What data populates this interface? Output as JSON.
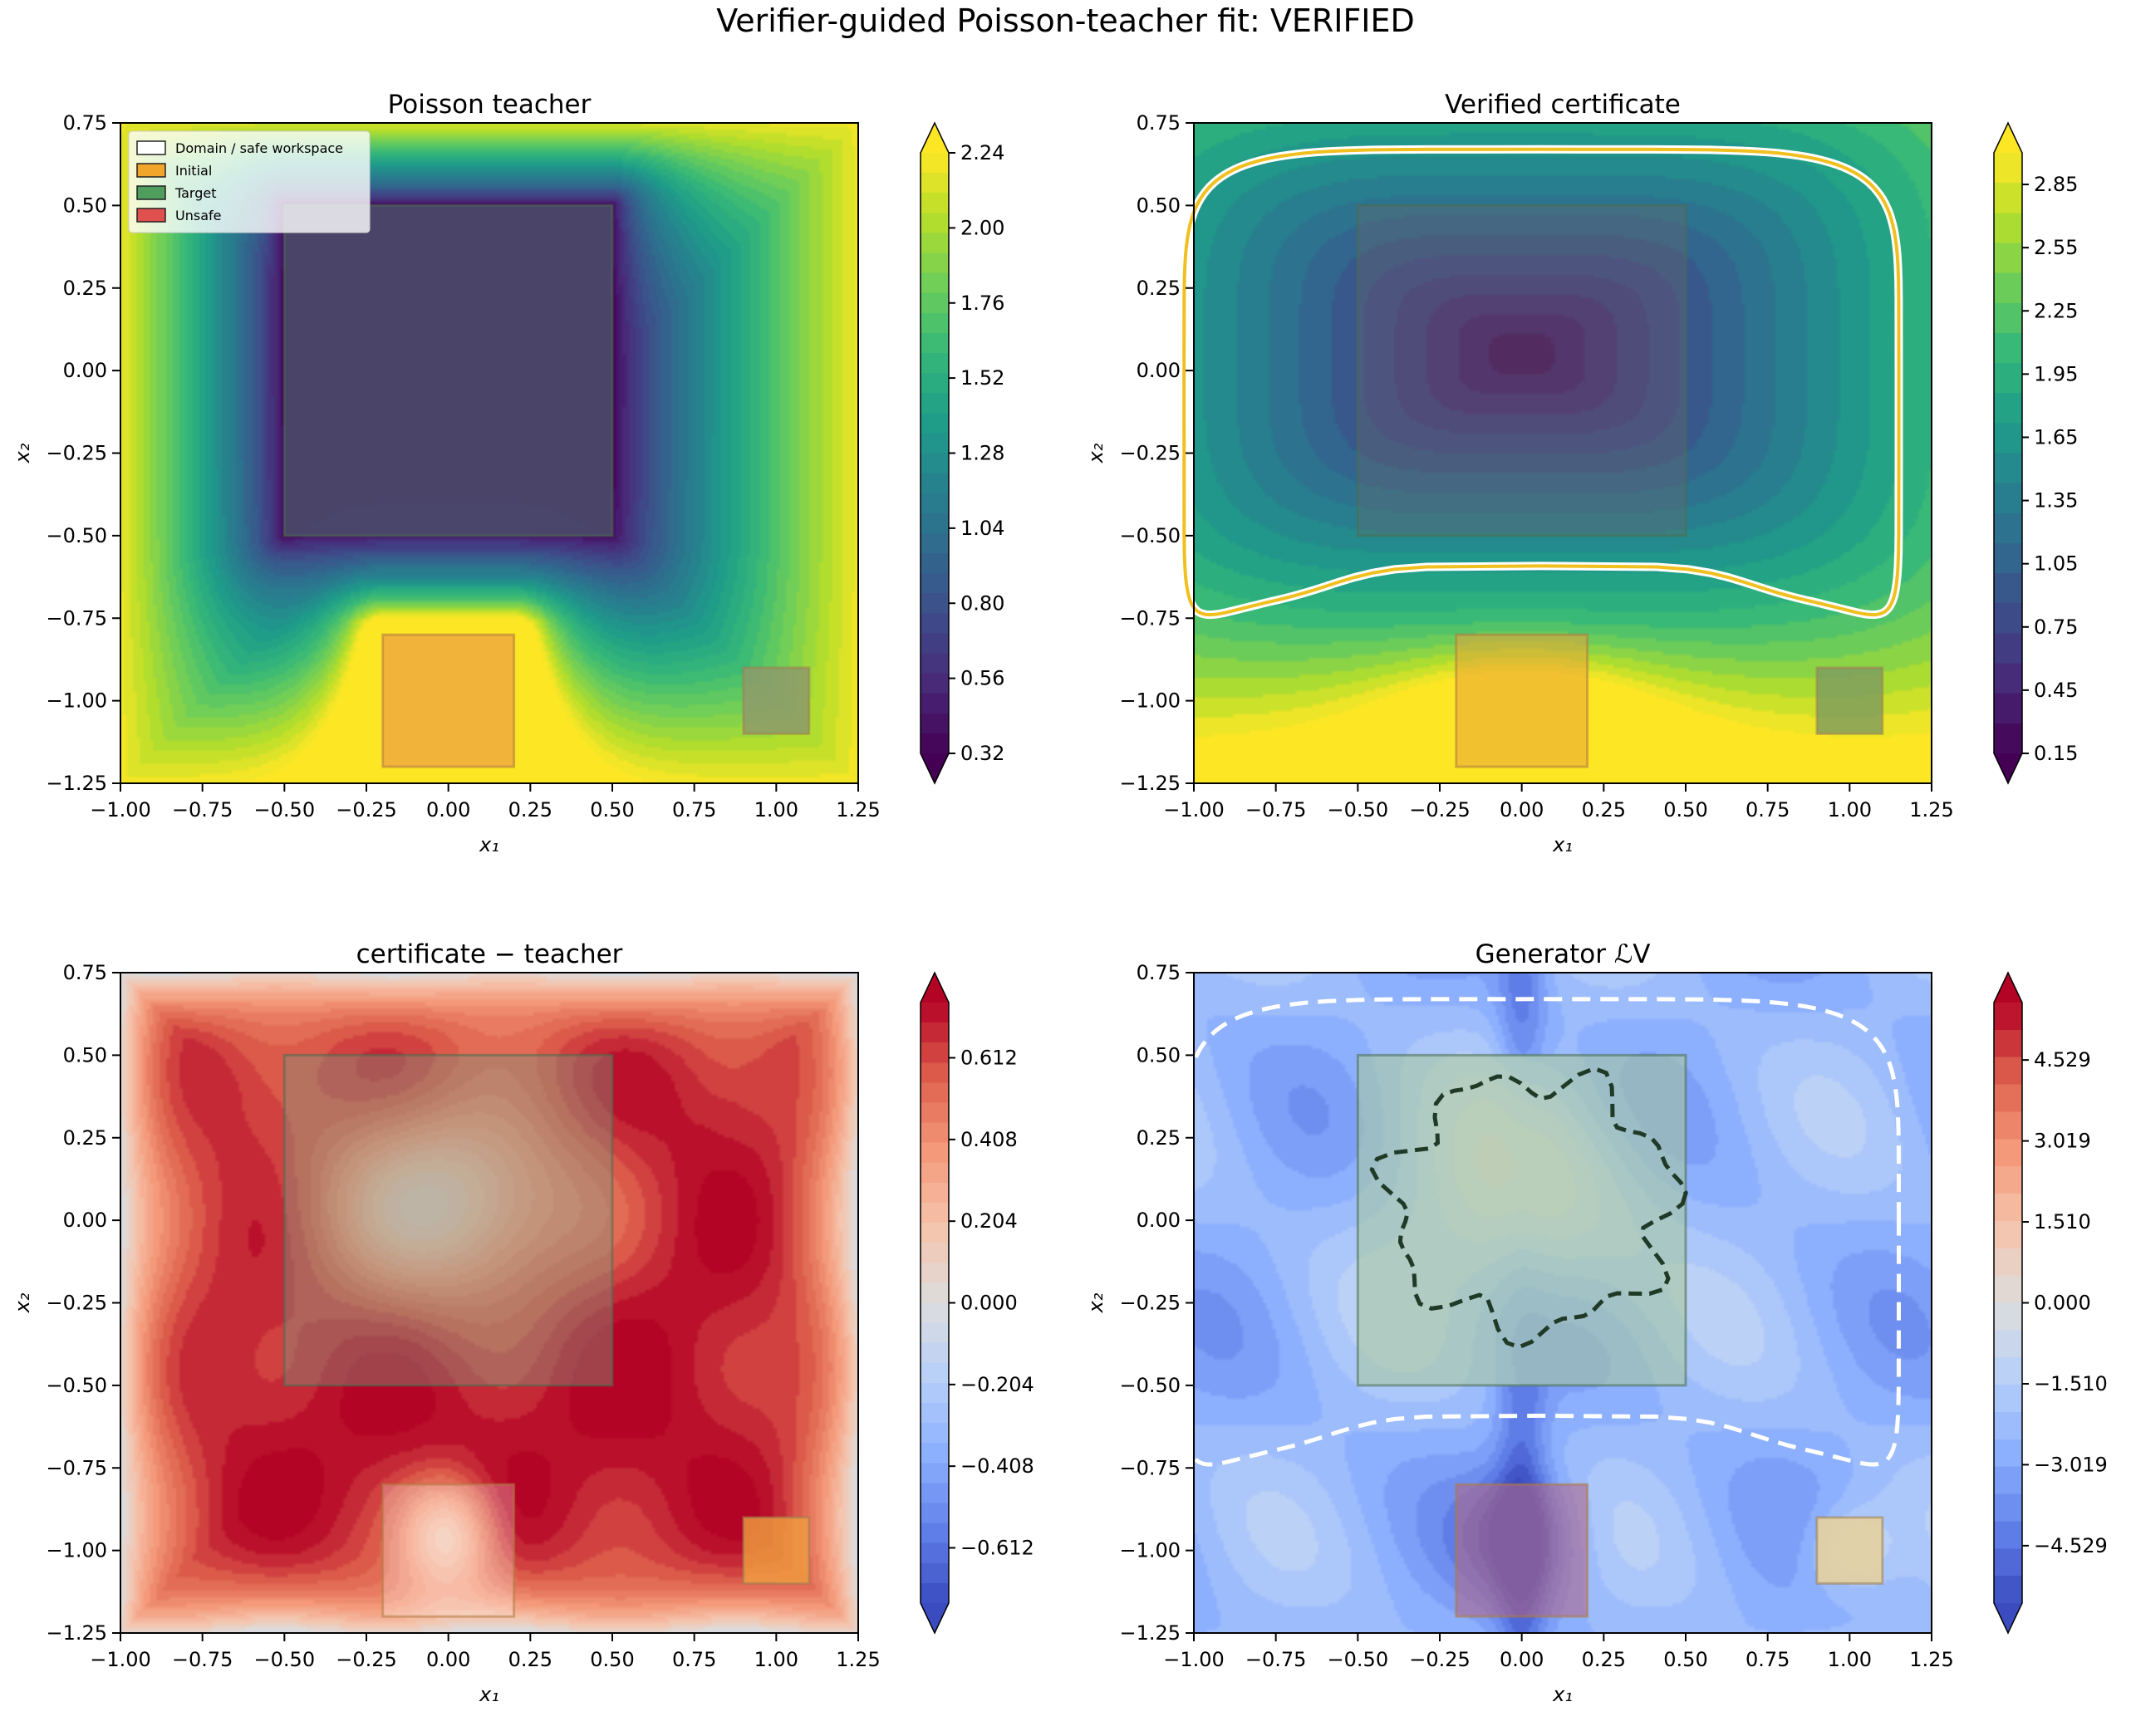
{
  "suptitle": "Verifier-guided Poisson-teacher fit: VERIFIED",
  "chart_data": [
    {
      "type": "heatmap",
      "title": "Poisson teacher",
      "xlabel": "x₁",
      "ylabel": "x₂",
      "xlim": [
        -1.0,
        1.25
      ],
      "ylim": [
        -1.25,
        0.75
      ],
      "xticks": [
        "−1.00",
        "−0.75",
        "−0.50",
        "−0.25",
        "0.00",
        "0.25",
        "0.50",
        "0.75",
        "1.00",
        "1.25"
      ],
      "yticks": [
        "0.75",
        "0.50",
        "0.25",
        "0.00",
        "−0.25",
        "−0.50",
        "−0.75",
        "−1.00",
        "−1.25"
      ],
      "colormap": "viridis",
      "colorbar_ticks": [
        "2.24",
        "2.00",
        "1.76",
        "1.52",
        "1.28",
        "1.04",
        "0.80",
        "0.56",
        "0.32"
      ],
      "colorbar_range": [
        0.32,
        2.24
      ],
      "legend": {
        "placement": "upper-left",
        "entries": [
          {
            "label": "Domain / safe workspace",
            "color": "#ffffff"
          },
          {
            "label": "Initial",
            "color": "#f2a52b"
          },
          {
            "label": "Target",
            "color": "#4f9e5e"
          },
          {
            "label": "Unsafe",
            "color": "#e0504f"
          }
        ]
      },
      "regions": {
        "target": [
          -0.5,
          0.5,
          -0.5,
          0.5
        ],
        "initial": [
          -0.2,
          0.2,
          -1.2,
          -0.8
        ],
        "unsafe": [
          0.9,
          1.1,
          -1.1,
          -0.9
        ]
      }
    },
    {
      "type": "heatmap",
      "title": "Verified certificate",
      "xlabel": "x₁",
      "ylabel": "x₂",
      "xlim": [
        -1.0,
        1.25
      ],
      "ylim": [
        -1.25,
        0.75
      ],
      "xticks": [
        "−1.00",
        "−0.75",
        "−0.50",
        "−0.25",
        "0.00",
        "0.25",
        "0.50",
        "0.75",
        "1.00",
        "1.25"
      ],
      "yticks": [
        "0.75",
        "0.50",
        "0.25",
        "0.00",
        "−0.25",
        "−0.50",
        "−0.75",
        "−1.00",
        "−1.25"
      ],
      "colormap": "viridis",
      "colorbar_ticks": [
        "2.85",
        "2.55",
        "2.25",
        "1.95",
        "1.65",
        "1.35",
        "1.05",
        "0.75",
        "0.45",
        "0.15"
      ],
      "colorbar_range": [
        0.15,
        3.0
      ],
      "level_curves": [
        "white",
        "gold"
      ]
    },
    {
      "type": "heatmap",
      "title": "certificate − teacher",
      "xlabel": "x₁",
      "ylabel": "x₂",
      "xlim": [
        -1.0,
        1.25
      ],
      "ylim": [
        -1.25,
        0.75
      ],
      "xticks": [
        "−1.00",
        "−0.75",
        "−0.50",
        "−0.25",
        "0.00",
        "0.25",
        "0.50",
        "0.75",
        "1.00",
        "1.25"
      ],
      "yticks": [
        "0.75",
        "0.50",
        "0.25",
        "0.00",
        "−0.25",
        "−0.50",
        "−0.75",
        "−1.00",
        "−1.25"
      ],
      "colormap": "coolwarm",
      "colorbar_ticks": [
        "0.612",
        "0.408",
        "0.204",
        "0.000",
        "−0.204",
        "−0.408",
        "−0.612"
      ],
      "colorbar_range": [
        -0.75,
        0.75
      ]
    },
    {
      "type": "heatmap",
      "title": "Generator ",
      "title_symbol": "ℒV",
      "xlabel": "x₁",
      "ylabel": "x₂",
      "xlim": [
        -1.0,
        1.25
      ],
      "ylim": [
        -1.25,
        0.75
      ],
      "xticks": [
        "−1.00",
        "−0.75",
        "−0.50",
        "−0.25",
        "0.00",
        "0.25",
        "0.50",
        "0.75",
        "1.00",
        "1.25"
      ],
      "yticks": [
        "0.75",
        "0.50",
        "0.25",
        "0.00",
        "−0.25",
        "−0.50",
        "−0.75",
        "−1.00",
        "−1.25"
      ],
      "colormap": "coolwarm",
      "colorbar_ticks": [
        "4.529",
        "3.019",
        "1.510",
        "0.000",
        "−1.510",
        "−3.019",
        "−4.529"
      ],
      "colorbar_range": [
        -5.6,
        5.6
      ],
      "level_curves": [
        "white dashed",
        "dark green dashed"
      ]
    }
  ]
}
